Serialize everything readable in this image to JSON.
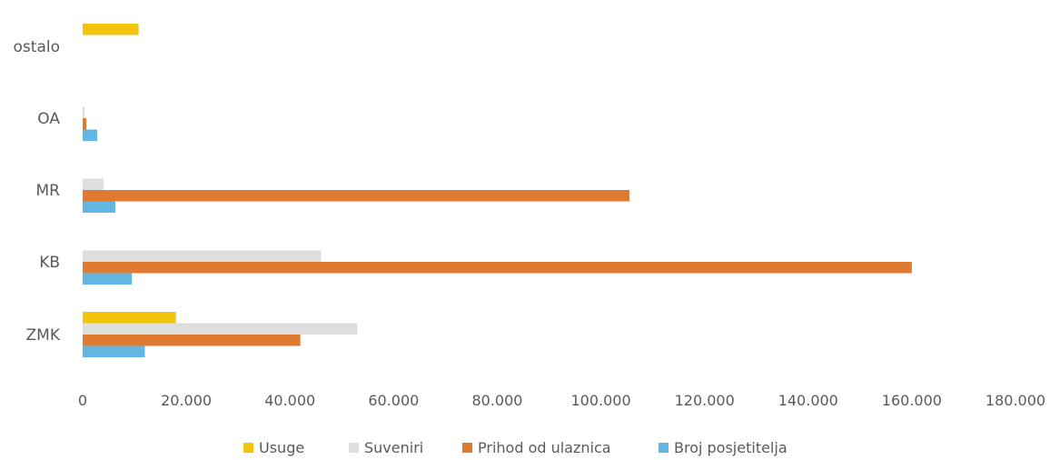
{
  "chart_data": {
    "type": "bar",
    "orientation": "horizontal",
    "categories": [
      "ZMK",
      "KB",
      "MR",
      "OA",
      "ostalo"
    ],
    "series": [
      {
        "name": "Usuge",
        "color": "#f2c40f",
        "values": [
          18000,
          0,
          0,
          0,
          10800
        ]
      },
      {
        "name": "Suveniri",
        "color": "#dedede",
        "values": [
          53000,
          46000,
          4000,
          400,
          0
        ]
      },
      {
        "name": "Prihod od ulaznica",
        "color": "#e07a30",
        "values": [
          42000,
          160000,
          105500,
          700,
          0
        ]
      },
      {
        "name": "Broj posjetitelja",
        "color": "#63b6e3",
        "values": [
          12000,
          9500,
          6300,
          2800,
          0
        ]
      }
    ],
    "xlim": [
      0,
      180000
    ],
    "xticks": [
      "0",
      "20.000",
      "40.000",
      "60.000",
      "80.000",
      "100.000",
      "120.000",
      "140.000",
      "160.000",
      "180.000"
    ],
    "title": "",
    "xlabel": "",
    "ylabel": "",
    "grid": false,
    "legend": "bottom"
  }
}
